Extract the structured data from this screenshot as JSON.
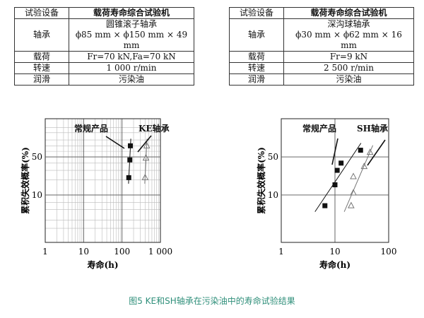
{
  "tables": [
    {
      "rows": [
        [
          "试验设备",
          "载荷寿命综合试验机"
        ],
        [
          "轴承",
          "圆锥滚子轴承"
        ],
        [
          "",
          "ϕ85 mm × ϕ150 mm × 49 mm"
        ],
        [
          "载荷",
          "Fr=70 kN,Fa=70 kN"
        ],
        [
          "转速",
          "1 000 r/min"
        ],
        [
          "润滑",
          "污染油"
        ]
      ]
    },
    {
      "rows": [
        [
          "试验设备",
          "载荷寿命综合试验机"
        ],
        [
          "轴承",
          "深沟球轴承"
        ],
        [
          "",
          "ϕ30 mm × ϕ62 mm × 16 mm"
        ],
        [
          "载荷",
          "Fr=9 kN"
        ],
        [
          "转速",
          "2 500 r/min"
        ],
        [
          "润滑",
          "污染油"
        ]
      ]
    }
  ],
  "chart_data": [
    {
      "type": "scatter",
      "xlabel": "寿命(h)",
      "ylabel": "累积失效概率(%)",
      "x_scale": "log",
      "xlim": [
        1,
        1000
      ],
      "x_ticks": [
        "1",
        "10",
        "100",
        "1 000"
      ],
      "y_scale": "weibull",
      "y_ticks": [
        "50",
        "10"
      ],
      "grid": true,
      "series": [
        {
          "name": "常规产品",
          "marker": "filled-square",
          "color": "#111111",
          "x": [
            150,
            160,
            165
          ],
          "y": [
            22,
            45,
            70
          ]
        },
        {
          "name": "KE轴承",
          "marker": "open-triangle",
          "color": "#777777",
          "x": [
            400,
            420,
            440
          ],
          "y": [
            22,
            48,
            70
          ]
        }
      ]
    },
    {
      "type": "scatter",
      "xlabel": "寿命(h)",
      "ylabel": "累积失效概率(%)",
      "x_scale": "log",
      "xlim": [
        1,
        100
      ],
      "x_ticks": [
        "1",
        "10",
        "100"
      ],
      "y_scale": "weibull",
      "y_ticks": [
        "50",
        "10"
      ],
      "grid": false,
      "series": [
        {
          "name": "常规产品",
          "marker": "filled-square",
          "color": "#111111",
          "x": [
            6.5,
            10,
            11,
            13,
            30
          ],
          "y": [
            6,
            16,
            30,
            40,
            62
          ]
        },
        {
          "name": "SH轴承",
          "marker": "open-triangle",
          "color": "#777777",
          "x": [
            20,
            22,
            22,
            35,
            45
          ],
          "y": [
            6,
            11,
            23,
            35,
            58
          ]
        }
      ]
    }
  ],
  "caption": "图5 KE和SH轴承在污染油中的寿命试验结果"
}
